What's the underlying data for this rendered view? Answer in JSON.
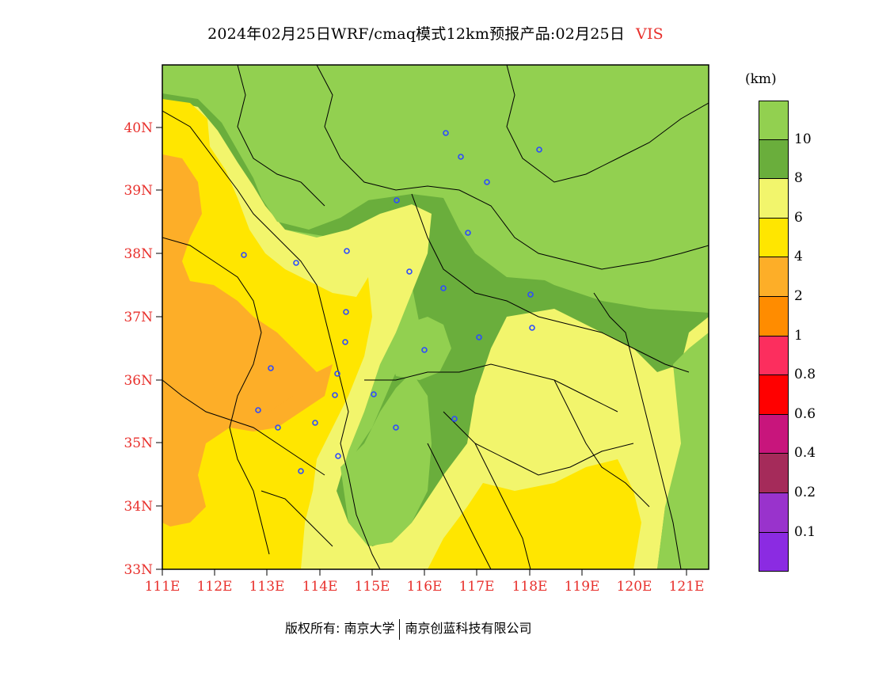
{
  "header": {
    "title": "2024年02月25日WRF/cmaq模式12km预报产品:02月25日",
    "variable": "VIS"
  },
  "map": {
    "lat_labels": [
      "40N",
      "39N",
      "38N",
      "37N",
      "36N",
      "35N",
      "34N",
      "33N"
    ],
    "lon_labels": [
      "111E",
      "112E",
      "113E",
      "114E",
      "115E",
      "116E",
      "117E",
      "118E",
      "119E",
      "120E",
      "121E"
    ],
    "lat_range": [
      33,
      41
    ],
    "lon_range": [
      111,
      121.4
    ]
  },
  "legend": {
    "unit": "(km)",
    "colors": [
      "#92d050",
      "#6aae3c",
      "#f2f56c",
      "#ffe600",
      "#fdae28",
      "#ff8c00",
      "#fc2e5e",
      "#ff0000",
      "#c8157c",
      "#a52b5a",
      "#9933cc",
      "#8b2be2"
    ],
    "labels": [
      "10",
      "8",
      "6",
      "4",
      "2",
      "1",
      "0.8",
      "0.6",
      "0.4",
      "0.2",
      "0.1"
    ]
  },
  "footer": {
    "copyright": "版权所有: 南京大学",
    "company": "南京创蓝科技有限公司"
  }
}
